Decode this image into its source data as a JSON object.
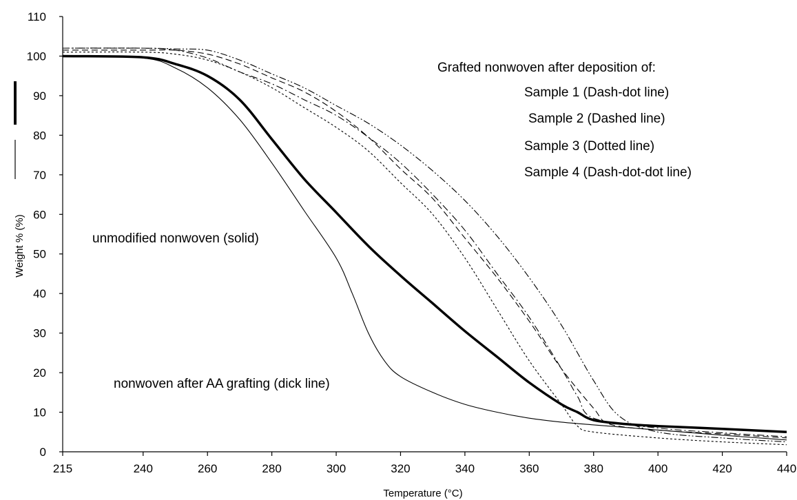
{
  "chart_data": {
    "type": "line",
    "title": "",
    "xlabel": "Temperature (°C)",
    "ylabel": "Weight % (%)",
    "xlim": [
      215,
      440
    ],
    "ylim": [
      0,
      110
    ],
    "grid": false,
    "legend": "none",
    "x_ticks": [
      {
        "value": 215,
        "label": "215"
      },
      {
        "value": 240,
        "label": "240"
      },
      {
        "value": 260,
        "label": "260"
      },
      {
        "value": 280,
        "label": "280"
      },
      {
        "value": 300,
        "label": "300"
      },
      {
        "value": 320,
        "label": "320"
      },
      {
        "value": 340,
        "label": "340"
      },
      {
        "value": 360,
        "label": "360"
      },
      {
        "value": 380,
        "label": "380"
      },
      {
        "value": 400,
        "label": "400"
      },
      {
        "value": 420,
        "label": "420"
      },
      {
        "value": 440,
        "label": "440"
      }
    ],
    "y_ticks": [
      0,
      10,
      20,
      30,
      40,
      50,
      60,
      70,
      80,
      90,
      100,
      110
    ],
    "annotations": [
      {
        "id": "header",
        "text": "Grafted nonwoven after deposition of:"
      },
      {
        "id": "s1",
        "text": "Sample 1 (Dash-dot line)"
      },
      {
        "id": "s2",
        "text": "Sample 2 (Dashed line)"
      },
      {
        "id": "s3",
        "text": "Sample 3 (Dotted line)"
      },
      {
        "id": "s4",
        "text": "Sample 4 (Dash-dot-dot line)"
      },
      {
        "id": "unmod",
        "text": "unmodified nonwoven (solid)"
      },
      {
        "id": "aa",
        "text": "nonwoven after AA grafting (dick line)"
      }
    ],
    "series": [
      {
        "style": "thin-solid",
        "x": [
          215,
          240,
          250,
          260,
          270,
          280,
          290,
          300,
          305,
          310,
          315,
          320,
          330,
          340,
          350,
          360,
          370,
          380,
          400,
          420,
          440
        ],
        "y": [
          100,
          99.5,
          97,
          92,
          84,
          73,
          61,
          49,
          40,
          30,
          23,
          19,
          15,
          12,
          10,
          8.5,
          7.5,
          6.8,
          5.5,
          4.2,
          3
        ]
      },
      {
        "style": "thick-solid",
        "x": [
          215,
          240,
          250,
          260,
          270,
          280,
          290,
          300,
          310,
          320,
          330,
          340,
          350,
          360,
          370,
          375,
          380,
          390,
          400,
          420,
          440
        ],
        "y": [
          100,
          99.7,
          98,
          95,
          89,
          79,
          69,
          60.5,
          52,
          44.5,
          37.5,
          30.5,
          24,
          17.5,
          12,
          10,
          8,
          7,
          6.5,
          5.8,
          5
        ]
      },
      {
        "style": "dash-dot",
        "x": [
          215,
          240,
          250,
          260,
          270,
          280,
          290,
          300,
          310,
          320,
          330,
          340,
          350,
          360,
          370,
          375,
          380,
          400,
          420,
          440
        ],
        "y": [
          102,
          102,
          101.5,
          99.5,
          96,
          93,
          89,
          85,
          79.5,
          73,
          65,
          56,
          45,
          34,
          21,
          14,
          8.5,
          6,
          4.8,
          3.8
        ]
      },
      {
        "style": "dashed",
        "x": [
          215,
          240,
          250,
          260,
          270,
          280,
          290,
          300,
          310,
          320,
          330,
          340,
          350,
          360,
          370,
          380,
          385,
          400,
          420,
          440
        ],
        "y": [
          101.5,
          101.5,
          101.5,
          100.5,
          98,
          94.5,
          91,
          86,
          79.5,
          71.5,
          64,
          54,
          44,
          33,
          21,
          11,
          7,
          5.5,
          4.5,
          3.5
        ]
      },
      {
        "style": "dotted",
        "x": [
          215,
          240,
          250,
          260,
          270,
          280,
          290,
          300,
          310,
          320,
          330,
          340,
          350,
          360,
          370,
          375,
          380,
          400,
          420,
          440
        ],
        "y": [
          101,
          101,
          100.5,
          99,
          96,
          92,
          87,
          82,
          76,
          68,
          60,
          49,
          36,
          23,
          12,
          6.5,
          5,
          3.5,
          2.5,
          1.8
        ]
      },
      {
        "style": "dash-dot-dot",
        "x": [
          215,
          240,
          250,
          260,
          270,
          280,
          290,
          300,
          310,
          320,
          330,
          340,
          350,
          360,
          370,
          380,
          388,
          400,
          420,
          440
        ],
        "y": [
          102,
          102,
          101.8,
          101.5,
          99,
          95.5,
          92,
          87.5,
          83,
          77.5,
          71,
          63.5,
          54.5,
          44,
          32,
          18,
          9,
          5,
          3.5,
          2.5
        ]
      }
    ]
  }
}
